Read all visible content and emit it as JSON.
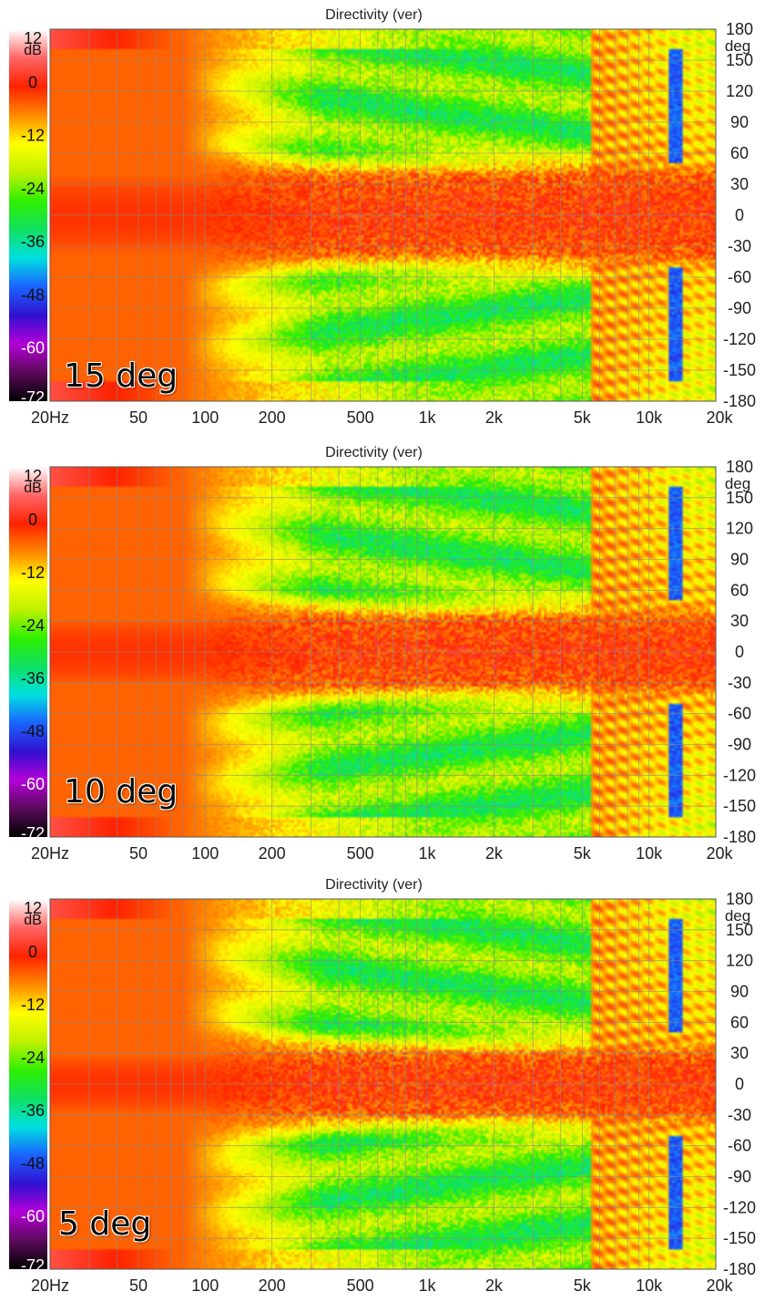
{
  "chart_data": [
    {
      "type": "heatmap",
      "title": "Directivity (ver)",
      "annotation": "15 deg",
      "x_unit_label": "Hz",
      "y_unit_label": "deg",
      "colorbar_unit": "dB",
      "x_scale": "log",
      "xlim": [
        20,
        20000
      ],
      "ylim": [
        -180,
        180
      ],
      "zlim": [
        -72,
        12
      ],
      "x_ticks": [
        {
          "v": 20,
          "label": "20Hz"
        },
        {
          "v": 50,
          "label": "50"
        },
        {
          "v": 100,
          "label": "100"
        },
        {
          "v": 200,
          "label": "200"
        },
        {
          "v": 500,
          "label": "500"
        },
        {
          "v": 1000,
          "label": "1k"
        },
        {
          "v": 2000,
          "label": "2k"
        },
        {
          "v": 5000,
          "label": "5k"
        },
        {
          "v": 10000,
          "label": "10k"
        },
        {
          "v": 20000,
          "label": "20k"
        }
      ],
      "y_ticks": [
        180,
        150,
        120,
        90,
        60,
        30,
        0,
        -30,
        -60,
        -90,
        -120,
        -150,
        -180
      ],
      "colorbar_ticks": [
        12,
        0,
        -12,
        -24,
        -36,
        -48,
        -60,
        -72
      ],
      "grid": true,
      "beam_halfwidth_deg": 38,
      "lobe_onset_hz": 5500
    },
    {
      "type": "heatmap",
      "title": "Directivity (ver)",
      "annotation": "10 deg",
      "x_unit_label": "Hz",
      "y_unit_label": "deg",
      "colorbar_unit": "dB",
      "x_scale": "log",
      "xlim": [
        20,
        20000
      ],
      "ylim": [
        -180,
        180
      ],
      "zlim": [
        -72,
        12
      ],
      "x_ticks": [
        {
          "v": 20,
          "label": "20Hz"
        },
        {
          "v": 50,
          "label": "50"
        },
        {
          "v": 100,
          "label": "100"
        },
        {
          "v": 200,
          "label": "200"
        },
        {
          "v": 500,
          "label": "500"
        },
        {
          "v": 1000,
          "label": "1k"
        },
        {
          "v": 2000,
          "label": "2k"
        },
        {
          "v": 5000,
          "label": "5k"
        },
        {
          "v": 10000,
          "label": "10k"
        },
        {
          "v": 20000,
          "label": "20k"
        }
      ],
      "y_ticks": [
        180,
        150,
        120,
        90,
        60,
        30,
        0,
        -30,
        -60,
        -90,
        -120,
        -150,
        -180
      ],
      "colorbar_ticks": [
        12,
        0,
        -12,
        -24,
        -36,
        -48,
        -60,
        -72
      ],
      "grid": true,
      "beam_halfwidth_deg": 32,
      "lobe_onset_hz": 5500
    },
    {
      "type": "heatmap",
      "title": "Directivity (ver)",
      "annotation": "5 deg",
      "x_unit_label": "Hz",
      "y_unit_label": "deg",
      "colorbar_unit": "dB",
      "x_scale": "log",
      "xlim": [
        20,
        20000
      ],
      "ylim": [
        -180,
        180
      ],
      "zlim": [
        -72,
        12
      ],
      "x_ticks": [
        {
          "v": 20,
          "label": "20Hz"
        },
        {
          "v": 50,
          "label": "50"
        },
        {
          "v": 100,
          "label": "100"
        },
        {
          "v": 200,
          "label": "200"
        },
        {
          "v": 500,
          "label": "500"
        },
        {
          "v": 1000,
          "label": "1k"
        },
        {
          "v": 2000,
          "label": "2k"
        },
        {
          "v": 5000,
          "label": "5k"
        },
        {
          "v": 10000,
          "label": "10k"
        },
        {
          "v": 20000,
          "label": "20k"
        }
      ],
      "y_ticks": [
        180,
        150,
        120,
        90,
        60,
        30,
        0,
        -30,
        -60,
        -90,
        -120,
        -150,
        -180
      ],
      "colorbar_ticks": [
        12,
        0,
        -12,
        -24,
        -36,
        -48,
        -60,
        -72
      ],
      "grid": true,
      "beam_halfwidth_deg": 28,
      "lobe_onset_hz": 5500
    }
  ],
  "colors": {
    "colormap": [
      "#000000",
      "#5a0a5a",
      "#b400d8",
      "#3010d0",
      "#1a64ff",
      "#00e0e0",
      "#10e060",
      "#30f000",
      "#c0f000",
      "#ffff00",
      "#ff8800",
      "#ff2200",
      "#ff6666",
      "#ffffff"
    ],
    "grid": "#8a8a8a",
    "text": "#222222",
    "background": "#ffffff"
  }
}
